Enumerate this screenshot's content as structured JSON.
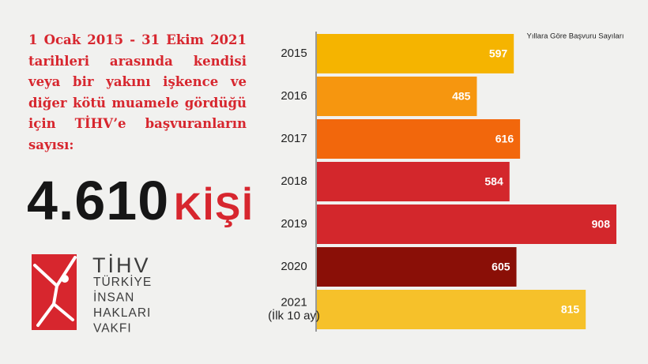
{
  "intro": "1 Ocak 2015 - 31 Ekim 2021 tarihleri arasında kendisi veya bir yakını işkence ve diğer kötü muamele gördüğü için TİHV’e başvuranların sayısı:",
  "total": "4.610",
  "unit": "KİŞİ",
  "logo": {
    "abbr": "TİHV",
    "name": [
      "TÜRKİYE",
      "İNSAN",
      "HAKLARI",
      "VAKFI"
    ]
  },
  "chart_data": {
    "type": "bar",
    "orientation": "horizontal",
    "title": "Yıllara Göre Başvuru Sayıları",
    "categories": [
      "2015",
      "2016",
      "2017",
      "2018",
      "2019",
      "2020",
      "2021\n(İlk 10 ay)"
    ],
    "values": [
      597,
      485,
      616,
      584,
      908,
      605,
      815
    ],
    "colors": [
      "#f5b400",
      "#f6960f",
      "#f2670c",
      "#d3272c",
      "#d3272c",
      "#8a0f07",
      "#f6c12a"
    ]
  }
}
